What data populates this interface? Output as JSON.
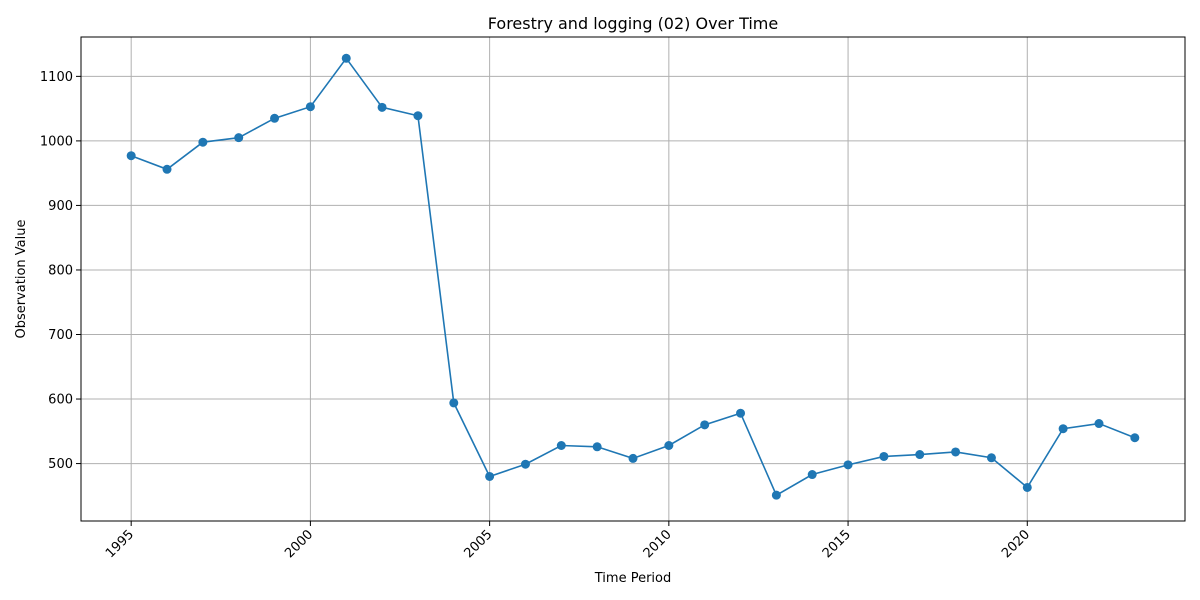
{
  "chart_data": {
    "type": "line",
    "title": "Forestry and logging (02) Over Time",
    "xlabel": "Time Period",
    "ylabel": "Observation Value",
    "xlim": [
      1993.6,
      2024.4
    ],
    "ylim": [
      411,
      1161
    ],
    "xticks": [
      1995,
      2000,
      2005,
      2010,
      2015,
      2020
    ],
    "xtick_labels": [
      "1995",
      "2000",
      "2005",
      "2010",
      "2015",
      "2020"
    ],
    "yticks": [
      500,
      600,
      700,
      800,
      900,
      1000,
      1100
    ],
    "ytick_labels": [
      "500",
      "600",
      "700",
      "800",
      "900",
      "1000",
      "1100"
    ],
    "grid": true,
    "color": "#1f77b4",
    "series": [
      {
        "x": [
          1995,
          1996,
          1997,
          1998,
          1999,
          2000,
          2001,
          2002,
          2003,
          2004,
          2005,
          2006,
          2007,
          2008,
          2009,
          2010,
          2011,
          2012,
          2013,
          2014,
          2015,
          2016,
          2017,
          2018,
          2019,
          2020,
          2021,
          2022,
          2023
        ],
        "values": [
          977,
          956,
          998,
          1005,
          1035,
          1053,
          1128,
          1052,
          1039,
          594,
          480,
          499,
          528,
          526,
          508,
          528,
          560,
          578,
          451,
          483,
          498,
          511,
          514,
          518,
          509,
          463,
          554,
          562,
          540
        ]
      }
    ]
  }
}
